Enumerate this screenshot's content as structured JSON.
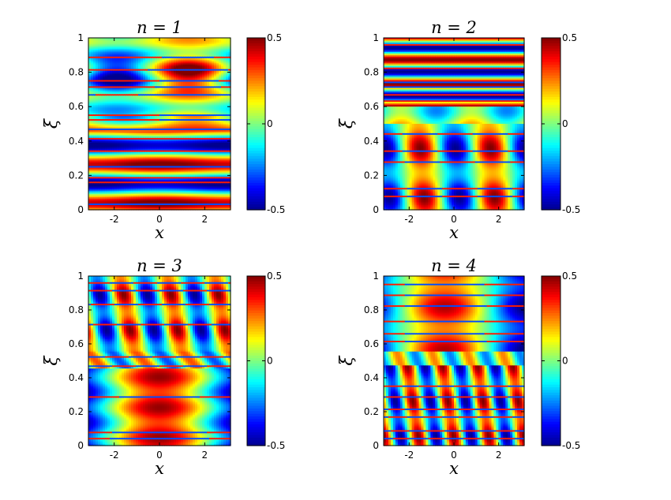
{
  "colormap": "jet",
  "colors": {
    "jet_stops": [
      "#00008f",
      "#0000ff",
      "#00ffff",
      "#ffff00",
      "#ff0000",
      "#800000"
    ],
    "axes_line": "#000000",
    "background": "#ffffff"
  },
  "chart_data": [
    {
      "type": "heatmap",
      "title": "n = 1",
      "xlabel": "x",
      "ylabel": "ξ",
      "xlim": [
        -3.14,
        3.14
      ],
      "ylim": [
        0,
        1
      ],
      "xticks": [
        -2,
        0,
        2
      ],
      "yticks": [
        0,
        0.2,
        0.4,
        0.6,
        0.8,
        1
      ],
      "colorbar": {
        "clim": [
          -0.5,
          0.5
        ],
        "ticks": [
          -0.5,
          0,
          0.5
        ],
        "tick_labels": [
          "-0.5",
          "0",
          "0.5"
        ]
      },
      "pattern": {
        "upper_region": "xi > 0.5: value ≈ 0.5·sin(1·x) (blue on left, red centre-right)",
        "lower_region": "xi < 0.5: horizontal bands nearly constant in x, alternating red/blue",
        "band_rows_xi": [
          0.03,
          0.1,
          0.16,
          0.19,
          0.25,
          0.3,
          0.34,
          0.41,
          0.47,
          0.52,
          0.55,
          0.67,
          0.71,
          0.75,
          0.81,
          0.89,
          0.9
        ]
      }
    },
    {
      "type": "heatmap",
      "title": "n = 2",
      "xlabel": "x",
      "ylabel": "ξ",
      "xlim": [
        -3.14,
        3.14
      ],
      "ylim": [
        0,
        1
      ],
      "xticks": [
        -2,
        0,
        2
      ],
      "yticks": [
        0,
        0.2,
        0.4,
        0.6,
        0.8,
        1
      ],
      "colorbar": {
        "clim": [
          -0.5,
          0.5
        ],
        "ticks": [
          -0.5,
          0,
          0.5
        ],
        "tick_labels": [
          "-0.5",
          "0",
          "0.5"
        ]
      },
      "pattern": {
        "upper_region": "xi > 0.6: horizontal red/blue bands",
        "lower_region": "xi < 0.5: value ≈ 0.5·sin(2·x)-like columns (red at x≈-1.5 and x≈1.5, blue near 0)",
        "band_rows_xi": [
          0.08,
          0.12,
          0.2,
          0.28,
          0.34,
          0.44,
          0.63,
          0.67,
          0.71,
          0.74,
          0.82,
          0.9,
          0.96
        ]
      }
    },
    {
      "type": "heatmap",
      "title": "n = 3",
      "xlabel": "x",
      "ylabel": "ξ",
      "xlim": [
        -3.14,
        3.14
      ],
      "ylim": [
        0,
        1
      ],
      "xticks": [
        -2,
        0,
        2
      ],
      "yticks": [
        0,
        0.2,
        0.4,
        0.6,
        0.8,
        1
      ],
      "colorbar": {
        "clim": [
          -0.5,
          0.5
        ],
        "ticks": [
          -0.5,
          0,
          0.5
        ],
        "tick_labels": [
          "-0.5",
          "0",
          "0.5"
        ]
      },
      "pattern": {
        "upper_region": "xi > 0.55: columns with 3 oscillations across x, sheared toward larger x as xi decreases",
        "lower_region": "xi < 0.45: broad red/yellow centre, blue edges, with thin horizontal stripes",
        "band_rows_xi": [
          0.04,
          0.08,
          0.2,
          0.29,
          0.47,
          0.52,
          0.6,
          0.71,
          0.83,
          0.91,
          0.96
        ]
      }
    },
    {
      "type": "heatmap",
      "title": "n = 4",
      "xlabel": "x",
      "ylabel": "ξ",
      "xlim": [
        -3.14,
        3.14
      ],
      "ylim": [
        0,
        1
      ],
      "xticks": [
        -2,
        0,
        2
      ],
      "yticks": [
        0,
        0.2,
        0.4,
        0.6,
        0.8,
        1
      ],
      "colorbar": {
        "clim": [
          -0.5,
          0.5
        ],
        "ticks": [
          -0.5,
          0,
          0.5
        ],
        "tick_labels": [
          "-0.5",
          "0",
          "0.5"
        ]
      },
      "pattern": {
        "upper_region": "xi > 0.55: broad red in centre-left, blue on right",
        "lower_region": "xi < 0.5: 4 oscillations across x, sheared columns, with thin horizontal stripes",
        "band_rows_xi": [
          0.04,
          0.09,
          0.17,
          0.21,
          0.29,
          0.35,
          0.61,
          0.66,
          0.73,
          0.8,
          0.82,
          0.89,
          0.95
        ]
      }
    }
  ]
}
